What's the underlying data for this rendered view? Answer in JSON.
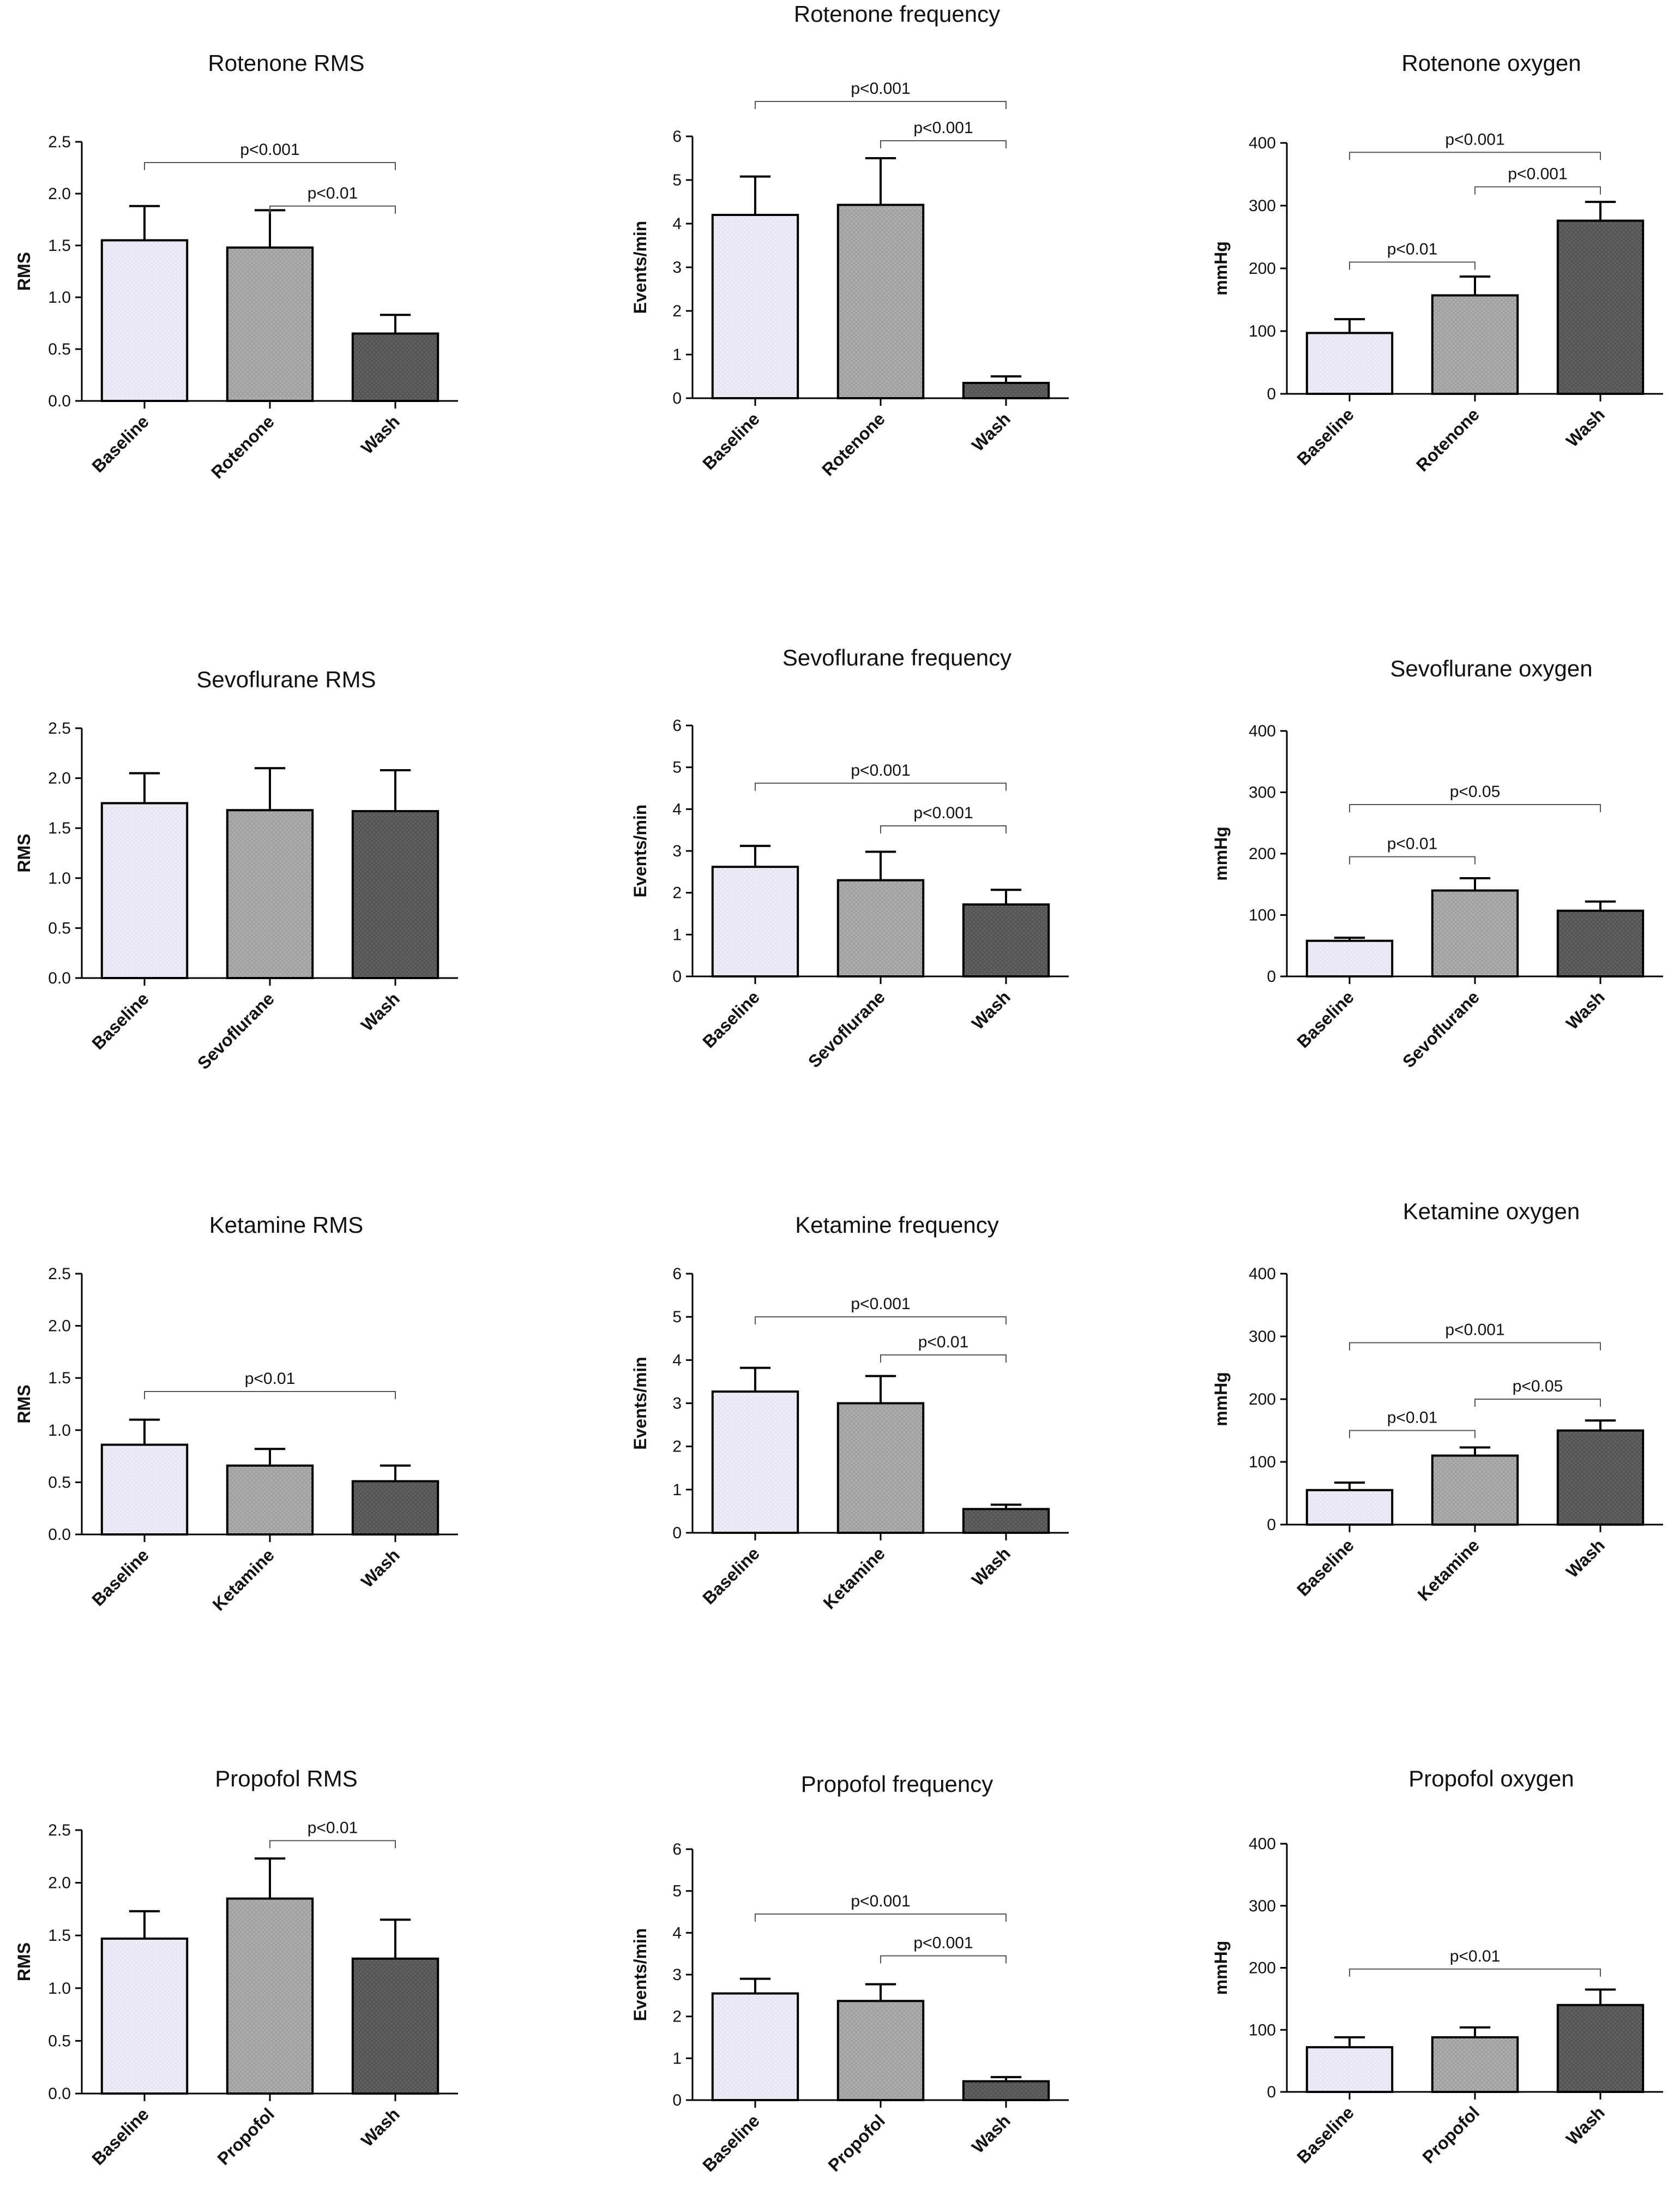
{
  "colors": {
    "baseline": "#e6e6f4",
    "treatment": "#a3a3a3",
    "wash": "#575757"
  },
  "chart_data": [
    {
      "type": "bar",
      "title": "Rotenone RMS",
      "ylabel": "RMS",
      "categories": [
        "Baseline",
        "Rotenone",
        "Wash"
      ],
      "values": [
        1.55,
        1.48,
        0.65
      ],
      "errors": [
        0.33,
        0.36,
        0.18
      ],
      "ylim": [
        0,
        2.5
      ],
      "yticks": [
        "0.0",
        "0.5",
        "1.0",
        "1.5",
        "2.0",
        "2.5"
      ],
      "comparisons": [
        {
          "from": 0,
          "to": 2,
          "label": "p<0.001",
          "level": 2.3
        },
        {
          "from": 1,
          "to": 2,
          "label": "p<0.01",
          "level": 1.88
        }
      ]
    },
    {
      "type": "bar",
      "title": "Rotenone frequency",
      "ylabel": "Events/min",
      "categories": [
        "Baseline",
        "Rotenone",
        "Wash"
      ],
      "values": [
        4.2,
        4.43,
        0.35
      ],
      "errors": [
        0.88,
        1.07,
        0.15
      ],
      "ylim": [
        0,
        6
      ],
      "yticks": [
        "0",
        "1",
        "2",
        "3",
        "4",
        "5",
        "6"
      ],
      "comparisons": [
        {
          "from": 0,
          "to": 2,
          "label": "p<0.001",
          "level": 6.8
        },
        {
          "from": 1,
          "to": 2,
          "label": "p<0.001",
          "level": 5.9
        }
      ]
    },
    {
      "type": "bar",
      "title": "Rotenone oxygen",
      "ylabel": "mmHg",
      "categories": [
        "Baseline",
        "Rotenone",
        "Wash"
      ],
      "values": [
        97,
        157,
        276
      ],
      "errors": [
        22,
        30,
        30
      ],
      "ylim": [
        0,
        400
      ],
      "yticks": [
        "0",
        "100",
        "200",
        "300",
        "400"
      ],
      "comparisons": [
        {
          "from": 0,
          "to": 2,
          "label": "p<0.001",
          "level": 385
        },
        {
          "from": 0,
          "to": 1,
          "label": "p<0.01",
          "level": 210
        },
        {
          "from": 1,
          "to": 2,
          "label": "p<0.001",
          "level": 330
        }
      ]
    },
    {
      "type": "bar",
      "title": "Sevoflurane RMS",
      "ylabel": "RMS",
      "categories": [
        "Baseline",
        "Sevoflurane",
        "Wash"
      ],
      "values": [
        1.75,
        1.68,
        1.67
      ],
      "errors": [
        0.3,
        0.42,
        0.41
      ],
      "ylim": [
        0,
        2.5
      ],
      "yticks": [
        "0.0",
        "0.5",
        "1.0",
        "1.5",
        "2.0",
        "2.5"
      ],
      "comparisons": []
    },
    {
      "type": "bar",
      "title": "Sevoflurane frequency",
      "ylabel": "Events/min",
      "categories": [
        "Baseline",
        "Sevoflurane",
        "Wash"
      ],
      "values": [
        2.62,
        2.3,
        1.72
      ],
      "errors": [
        0.5,
        0.68,
        0.35
      ],
      "ylim": [
        0,
        6
      ],
      "yticks": [
        "0",
        "1",
        "2",
        "3",
        "4",
        "5",
        "6"
      ],
      "comparisons": [
        {
          "from": 0,
          "to": 2,
          "label": "p<0.001",
          "level": 4.62
        },
        {
          "from": 1,
          "to": 2,
          "label": "p<0.001",
          "level": 3.6
        }
      ]
    },
    {
      "type": "bar",
      "title": "Sevoflurane oxygen",
      "ylabel": "mmHg",
      "categories": [
        "Baseline",
        "Sevoflurane",
        "Wash"
      ],
      "values": [
        58,
        140,
        107
      ],
      "errors": [
        5,
        20,
        15
      ],
      "ylim": [
        0,
        400
      ],
      "yticks": [
        "0",
        "100",
        "200",
        "300",
        "400"
      ],
      "comparisons": [
        {
          "from": 0,
          "to": 2,
          "label": "p<0.05",
          "level": 280
        },
        {
          "from": 0,
          "to": 1,
          "label": "p<0.01",
          "level": 195
        }
      ]
    },
    {
      "type": "bar",
      "title": "Ketamine RMS",
      "ylabel": "RMS",
      "categories": [
        "Baseline",
        "Ketamine",
        "Wash"
      ],
      "values": [
        0.86,
        0.66,
        0.51
      ],
      "errors": [
        0.24,
        0.16,
        0.15
      ],
      "ylim": [
        0,
        2.5
      ],
      "yticks": [
        "0.0",
        "0.5",
        "1.0",
        "1.5",
        "2.0",
        "2.5"
      ],
      "comparisons": [
        {
          "from": 0,
          "to": 2,
          "label": "p<0.01",
          "level": 1.37
        }
      ]
    },
    {
      "type": "bar",
      "title": "Ketamine frequency",
      "ylabel": "Events/min",
      "categories": [
        "Baseline",
        "Ketamine",
        "Wash"
      ],
      "values": [
        3.27,
        3.0,
        0.55
      ],
      "errors": [
        0.55,
        0.63,
        0.1
      ],
      "ylim": [
        0,
        6
      ],
      "yticks": [
        "0",
        "1",
        "2",
        "3",
        "4",
        "5",
        "6"
      ],
      "comparisons": [
        {
          "from": 0,
          "to": 2,
          "label": "p<0.001",
          "level": 5.0
        },
        {
          "from": 1,
          "to": 2,
          "label": "p<0.01",
          "level": 4.12
        }
      ]
    },
    {
      "type": "bar",
      "title": "Ketamine oxygen",
      "ylabel": "mmHg",
      "categories": [
        "Baseline",
        "Ketamine",
        "Wash"
      ],
      "values": [
        55,
        110,
        150
      ],
      "errors": [
        12,
        13,
        16
      ],
      "ylim": [
        0,
        400
      ],
      "yticks": [
        "0",
        "100",
        "200",
        "300",
        "400"
      ],
      "comparisons": [
        {
          "from": 0,
          "to": 2,
          "label": "p<0.001",
          "level": 290
        },
        {
          "from": 0,
          "to": 1,
          "label": "p<0.01",
          "level": 150
        },
        {
          "from": 1,
          "to": 2,
          "label": "p<0.05",
          "level": 200
        }
      ]
    },
    {
      "type": "bar",
      "title": "Propofol RMS",
      "ylabel": "RMS",
      "categories": [
        "Baseline",
        "Propofol",
        "Wash"
      ],
      "values": [
        1.47,
        1.85,
        1.28
      ],
      "errors": [
        0.26,
        0.38,
        0.37
      ],
      "ylim": [
        0,
        2.5
      ],
      "yticks": [
        "0.0",
        "0.5",
        "1.0",
        "1.5",
        "2.0",
        "2.5"
      ],
      "comparisons": [
        {
          "from": 1,
          "to": 2,
          "label": "p<0.01",
          "level": 2.4
        }
      ]
    },
    {
      "type": "bar",
      "title": "Propofol frequency",
      "ylabel": "Events/min",
      "categories": [
        "Baseline",
        "Propofol",
        "Wash"
      ],
      "values": [
        2.55,
        2.37,
        0.45
      ],
      "errors": [
        0.35,
        0.4,
        0.1
      ],
      "ylim": [
        0,
        6
      ],
      "yticks": [
        "0",
        "1",
        "2",
        "3",
        "4",
        "5",
        "6"
      ],
      "comparisons": [
        {
          "from": 0,
          "to": 2,
          "label": "p<0.001",
          "level": 4.45
        },
        {
          "from": 1,
          "to": 2,
          "label": "p<0.001",
          "level": 3.45
        }
      ]
    },
    {
      "type": "bar",
      "title": "Propofol oxygen",
      "ylabel": "mmHg",
      "categories": [
        "Baseline",
        "Propofol",
        "Wash"
      ],
      "values": [
        72,
        88,
        140
      ],
      "errors": [
        16,
        16,
        25
      ],
      "ylim": [
        0,
        400
      ],
      "yticks": [
        "0",
        "100",
        "200",
        "300",
        "400"
      ],
      "comparisons": [
        {
          "from": 0,
          "to": 2,
          "label": "p<0.01",
          "level": 198
        }
      ]
    }
  ]
}
